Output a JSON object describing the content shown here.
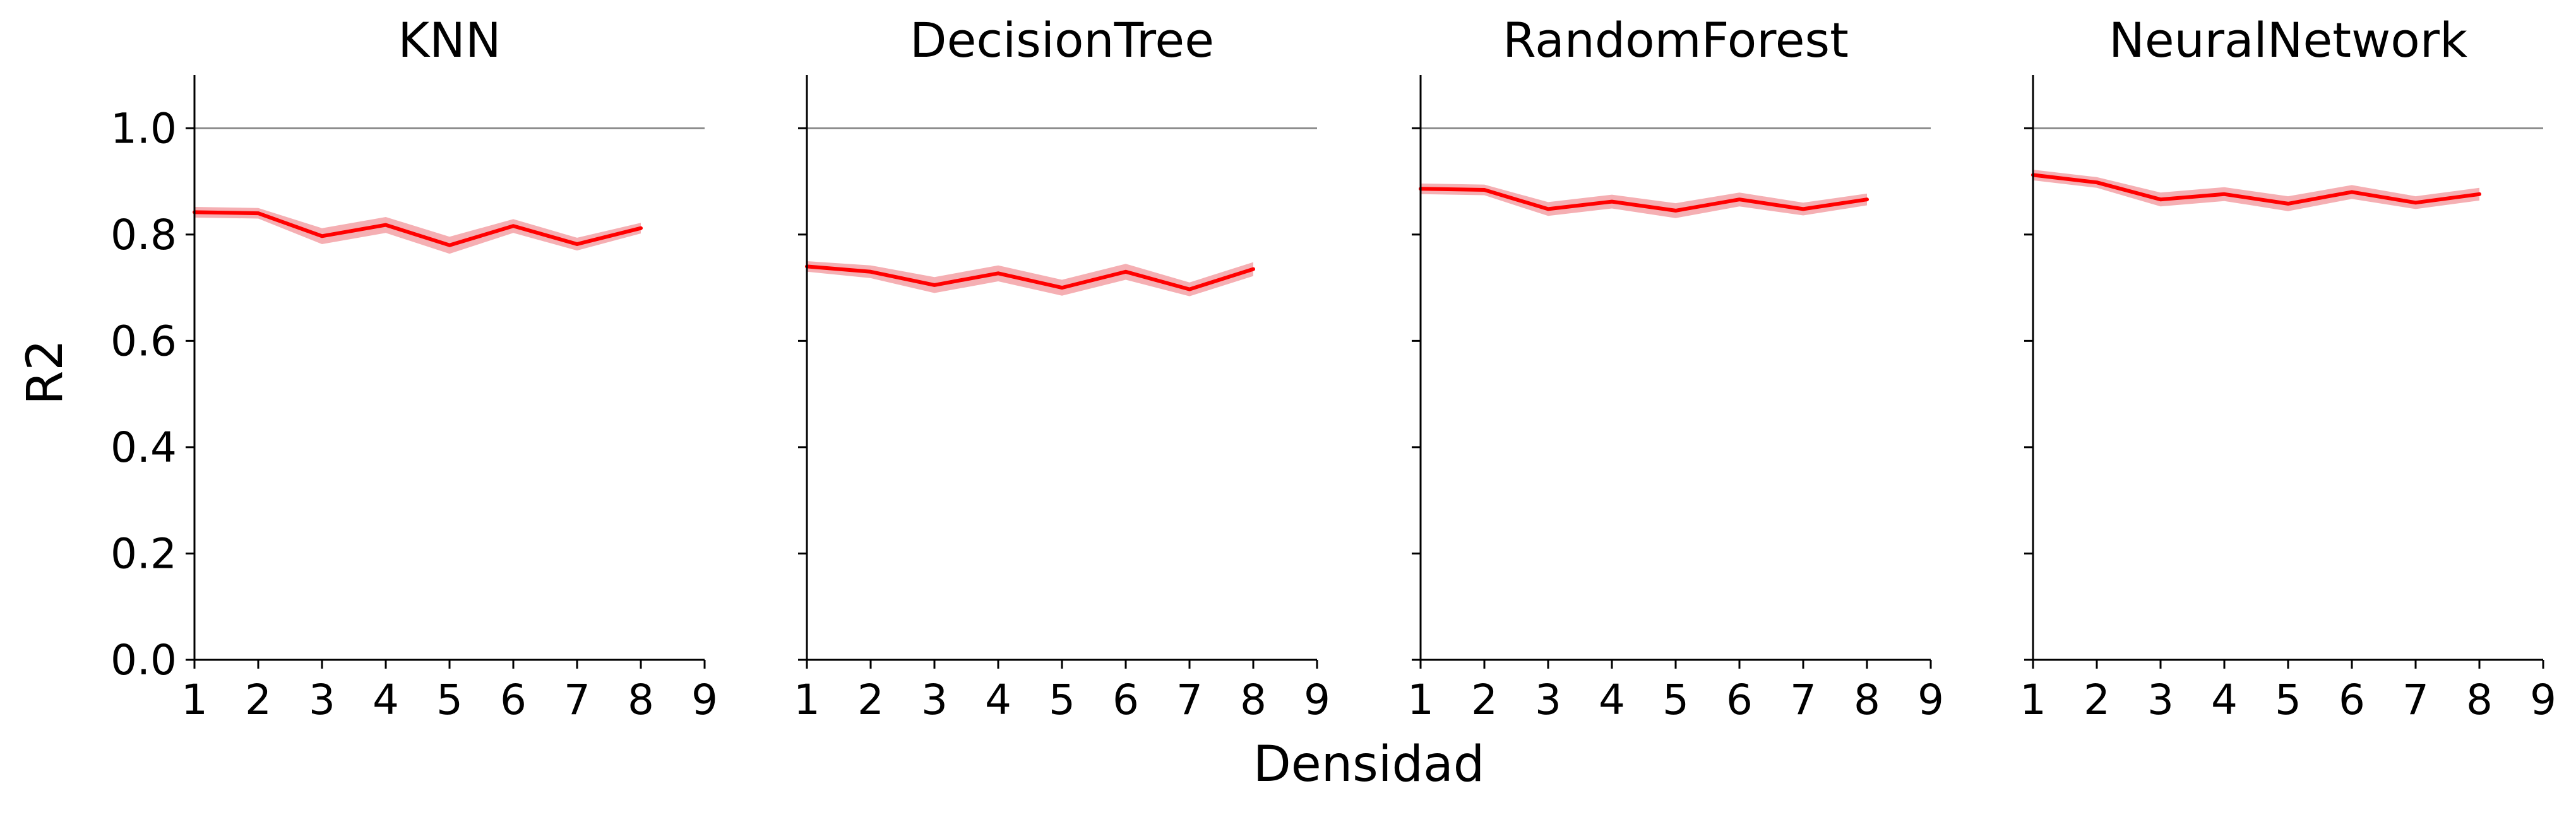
{
  "xlabel": "Densidad",
  "ylabel": "R2",
  "colors": {
    "line": "#ff0000",
    "band": "#f4a6ab",
    "reference": "#808080",
    "axis": "#000000"
  },
  "chart_data": [
    {
      "type": "line",
      "title": "KNN",
      "xlim": [
        1,
        9
      ],
      "ylim": [
        0,
        1.1
      ],
      "xticks": [
        "1",
        "2",
        "3",
        "4",
        "5",
        "6",
        "7",
        "8",
        "9"
      ],
      "yticks": [
        "0.0",
        "0.2",
        "0.4",
        "0.6",
        "0.8",
        "1.0"
      ],
      "reference_line": 1.0,
      "x": [
        1,
        2,
        3,
        4,
        5,
        6,
        7,
        8
      ],
      "y": [
        0.842,
        0.84,
        0.797,
        0.818,
        0.78,
        0.816,
        0.782,
        0.812
      ],
      "ci_low": [
        0.832,
        0.83,
        0.782,
        0.803,
        0.764,
        0.803,
        0.77,
        0.802
      ],
      "ci_high": [
        0.852,
        0.85,
        0.812,
        0.833,
        0.796,
        0.829,
        0.794,
        0.822
      ]
    },
    {
      "type": "line",
      "title": "DecisionTree",
      "xlim": [
        1,
        9
      ],
      "ylim": [
        0,
        1.1
      ],
      "xticks": [
        "1",
        "2",
        "3",
        "4",
        "5",
        "6",
        "7",
        "8",
        "9"
      ],
      "yticks": [
        "0.0",
        "0.2",
        "0.4",
        "0.6",
        "0.8",
        "1.0"
      ],
      "reference_line": 1.0,
      "x": [
        1,
        2,
        3,
        4,
        5,
        6,
        7,
        8
      ],
      "y": [
        0.74,
        0.73,
        0.705,
        0.727,
        0.7,
        0.73,
        0.697,
        0.735
      ],
      "ci_low": [
        0.73,
        0.718,
        0.69,
        0.712,
        0.685,
        0.715,
        0.684,
        0.722
      ],
      "ci_high": [
        0.75,
        0.742,
        0.72,
        0.742,
        0.715,
        0.745,
        0.71,
        0.748
      ]
    },
    {
      "type": "line",
      "title": "RandomForest",
      "xlim": [
        1,
        9
      ],
      "ylim": [
        0,
        1.1
      ],
      "xticks": [
        "1",
        "2",
        "3",
        "4",
        "5",
        "6",
        "7",
        "8",
        "9"
      ],
      "yticks": [
        "0.0",
        "0.2",
        "0.4",
        "0.6",
        "0.8",
        "1.0"
      ],
      "reference_line": 1.0,
      "x": [
        1,
        2,
        3,
        4,
        5,
        6,
        7,
        8
      ],
      "y": [
        0.886,
        0.884,
        0.848,
        0.862,
        0.845,
        0.866,
        0.848,
        0.866
      ],
      "ci_low": [
        0.876,
        0.874,
        0.835,
        0.849,
        0.831,
        0.853,
        0.836,
        0.855
      ],
      "ci_high": [
        0.896,
        0.894,
        0.861,
        0.875,
        0.859,
        0.879,
        0.86,
        0.877
      ]
    },
    {
      "type": "line",
      "title": "NeuralNetwork",
      "xlim": [
        1,
        9
      ],
      "ylim": [
        0,
        1.1
      ],
      "xticks": [
        "1",
        "2",
        "3",
        "4",
        "5",
        "6",
        "7",
        "8",
        "9"
      ],
      "yticks": [
        "0.0",
        "0.2",
        "0.4",
        "0.6",
        "0.8",
        "1.0"
      ],
      "reference_line": 1.0,
      "x": [
        1,
        2,
        3,
        4,
        5,
        6,
        7,
        8
      ],
      "y": [
        0.912,
        0.898,
        0.866,
        0.876,
        0.858,
        0.88,
        0.86,
        0.876
      ],
      "ci_low": [
        0.902,
        0.888,
        0.853,
        0.863,
        0.844,
        0.867,
        0.848,
        0.864
      ],
      "ci_high": [
        0.922,
        0.908,
        0.879,
        0.889,
        0.872,
        0.893,
        0.872,
        0.888
      ]
    }
  ]
}
